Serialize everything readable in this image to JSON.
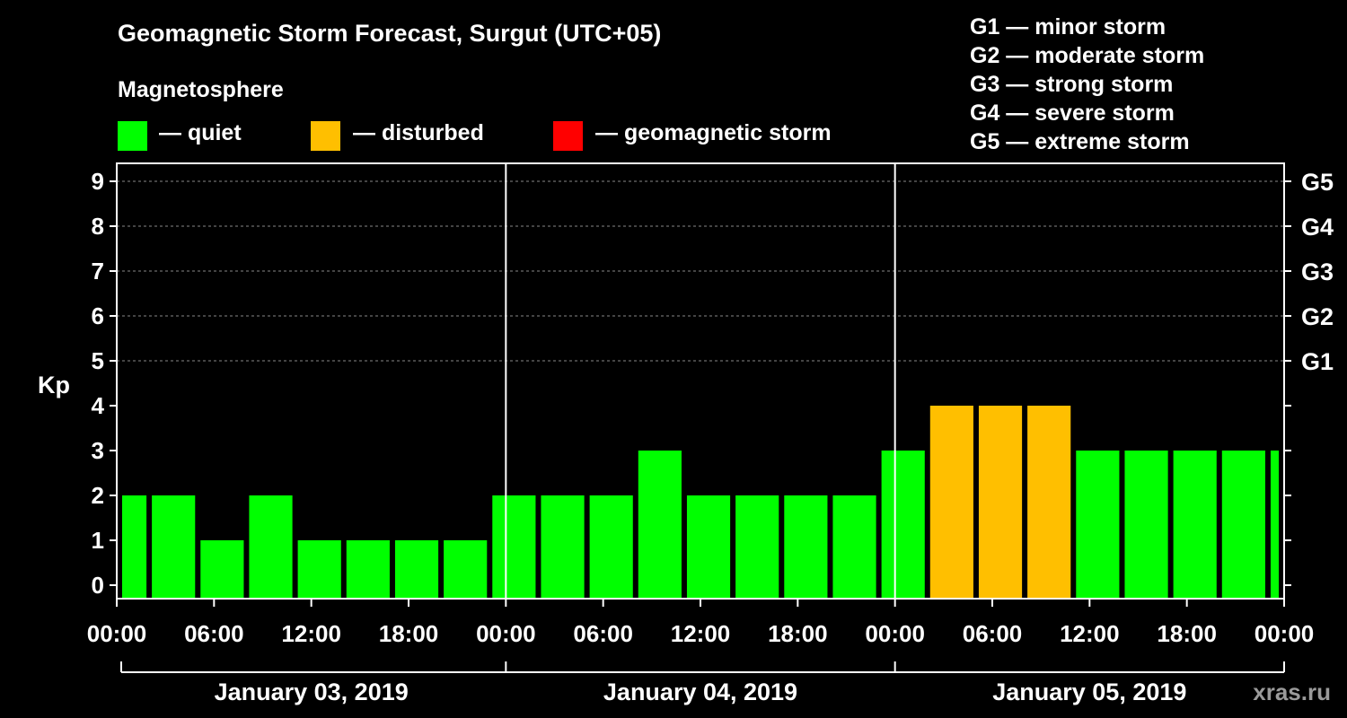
{
  "title": "Geomagnetic Storm Forecast, Surgut (UTC+05)",
  "subtitle": "Magnetosphere",
  "legend": [
    {
      "color": "#00ff00",
      "label": "— quiet"
    },
    {
      "color": "#ffbf00",
      "label": "— disturbed"
    },
    {
      "color": "#ff0000",
      "label": "— geomagnetic storm"
    }
  ],
  "g_legend": [
    "G1 — minor storm",
    "G2 — moderate storm",
    "G3 — strong storm",
    "G4 — severe storm",
    "G5 — extreme storm"
  ],
  "watermark": "xras.ru",
  "chart_data": {
    "type": "bar",
    "title": "Geomagnetic Storm Forecast, Surgut (UTC+05)",
    "ylabel": "Kp",
    "ylim": [
      0,
      9
    ],
    "yticks": [
      "0",
      "1",
      "2",
      "3",
      "4",
      "5",
      "6",
      "7",
      "8",
      "9"
    ],
    "right_ticks": [
      {
        "kp": 5,
        "label": "G1"
      },
      {
        "kp": 6,
        "label": "G2"
      },
      {
        "kp": 7,
        "label": "G3"
      },
      {
        "kp": 8,
        "label": "G4"
      },
      {
        "kp": 9,
        "label": "G5"
      }
    ],
    "x_tick_labels": [
      "00:00",
      "06:00",
      "12:00",
      "18:00",
      "00:00",
      "06:00",
      "12:00",
      "18:00",
      "00:00",
      "06:00",
      "12:00",
      "18:00",
      "00:00"
    ],
    "days": [
      "January 03, 2019",
      "January 04, 2019",
      "January 05, 2019"
    ],
    "interval_hours": 3,
    "start_hour": -1,
    "values": [
      2,
      2,
      1,
      2,
      1,
      1,
      1,
      1,
      2,
      2,
      2,
      3,
      2,
      2,
      2,
      2,
      3,
      4,
      4,
      4,
      3,
      3,
      3,
      3,
      3
    ],
    "colors": [
      "#00ff00",
      "#ffbf00",
      "#ff0000"
    ],
    "thresholds": {
      "disturbed": 4,
      "storm": 5
    }
  }
}
